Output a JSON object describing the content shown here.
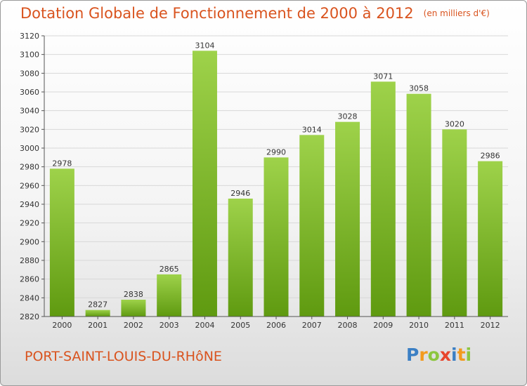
{
  "title": "Dotation Globale de Fonctionnement de 2000 à 2012",
  "unit": "(en milliers d'€)",
  "commune": "PORT-SAINT-LOUIS-DU-RHôNE",
  "logo": {
    "text": "Proxiti",
    "letters": [
      "P",
      "r",
      "o",
      "x",
      "i",
      "t",
      "i"
    ],
    "colors": [
      "#3b7fc4",
      "#f39a1e",
      "#8cc63f",
      "#e8452c",
      "#3b7fc4",
      "#f39a1e",
      "#8cc63f"
    ]
  },
  "colors": {
    "title": "#d9531e",
    "bar_top": "#9ed24a",
    "bar_bottom": "#5f9a10",
    "grid": "#d8d8d8",
    "axis": "#555555"
  },
  "chart_data": {
    "type": "bar",
    "categories": [
      "2000",
      "2001",
      "2002",
      "2003",
      "2004",
      "2005",
      "2006",
      "2007",
      "2008",
      "2009",
      "2010",
      "2011",
      "2012"
    ],
    "values": [
      2978,
      2827,
      2838,
      2865,
      3104,
      2946,
      2990,
      3014,
      3028,
      3071,
      3058,
      3020,
      2986
    ],
    "ylim": [
      2820,
      3120
    ],
    "yticks": [
      2820,
      2840,
      2860,
      2880,
      2900,
      2920,
      2940,
      2960,
      2980,
      3000,
      3020,
      3040,
      3060,
      3080,
      3100,
      3120
    ],
    "grid": true,
    "xlabel": "",
    "ylabel": ""
  }
}
